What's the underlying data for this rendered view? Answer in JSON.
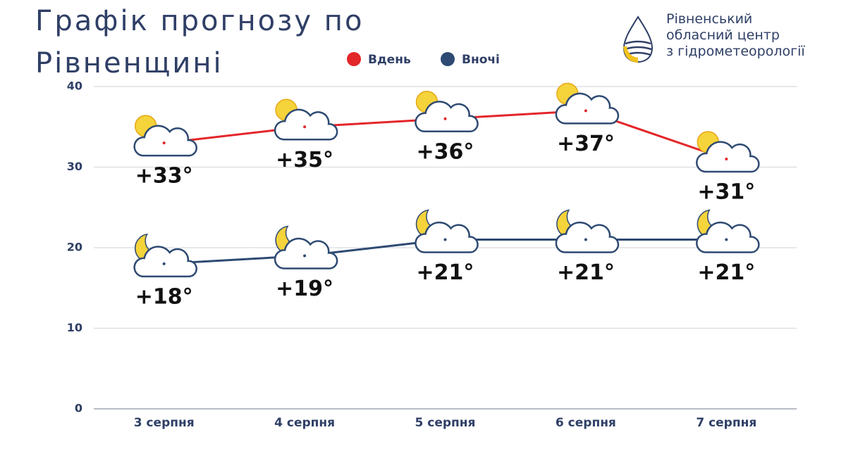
{
  "chart_data": {
    "type": "line",
    "title": "Графік прогнозу по Рівненщині",
    "source": [
      "Рівненський",
      "обласний центр",
      "з гідрометеорології"
    ],
    "categories": [
      "3 серпня",
      "4 серпня",
      "5 серпня",
      "6 серпня",
      "7 серпня"
    ],
    "series": [
      {
        "name": "Вдень",
        "color": "#e3262a",
        "values": [
          33,
          35,
          36,
          37,
          31
        ],
        "value_labels": [
          "+33°",
          "+35°",
          "+36°",
          "+37°",
          "+31°"
        ]
      },
      {
        "name": "Вночі",
        "color": "#2e4a72",
        "values": [
          18,
          19,
          21,
          21,
          21
        ],
        "value_labels": [
          "+18°",
          "+19°",
          "+21°",
          "+21°",
          "+21°"
        ]
      }
    ],
    "ylim": [
      0,
      40
    ],
    "yticks": [
      0,
      10,
      20,
      30,
      40
    ],
    "grid": true
  }
}
